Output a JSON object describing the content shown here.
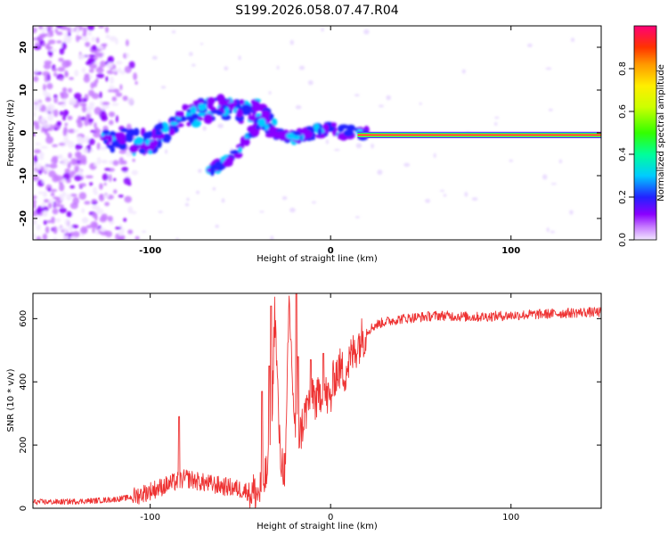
{
  "title": "S199.2026.058.07.47.R04",
  "chart_data": [
    {
      "type": "heatmap",
      "name": "spectrogram",
      "xlabel": "Height of straight line (km)",
      "ylabel": "Frequency (Hz)",
      "xlim": [
        -165,
        150
      ],
      "ylim": [
        -25,
        25
      ],
      "xticks": [
        -100,
        0,
        100
      ],
      "xtick_labels": [
        "-100",
        "0",
        "100"
      ],
      "yticks": [
        -20,
        -10,
        0,
        10,
        20
      ],
      "ytick_labels": [
        "-20",
        "-10",
        "0",
        "10",
        "20"
      ],
      "colorbar": {
        "label": "Normalized spectral amplitude",
        "range": [
          0,
          1
        ],
        "ticks": [
          0.0,
          0.2,
          0.4,
          0.6,
          0.8
        ],
        "tick_labels": [
          "0.0",
          "0.2",
          "0.4",
          "0.6",
          "0.8"
        ]
      },
      "ridge": [
        {
          "x": -120,
          "y": -1.5
        },
        {
          "x": -110,
          "y": -2
        },
        {
          "x": -100,
          "y": -2
        },
        {
          "x": -90,
          "y": 1
        },
        {
          "x": -80,
          "y": 4
        },
        {
          "x": -70,
          "y": 5
        },
        {
          "x": -60,
          "y": 6
        },
        {
          "x": -50,
          "y": 5
        },
        {
          "x": -40,
          "y": 5
        },
        {
          "x": -30,
          "y": 0
        },
        {
          "x": -20,
          "y": -1
        },
        {
          "x": -10,
          "y": 0
        },
        {
          "x": 0,
          "y": 1
        },
        {
          "x": 10,
          "y": 0
        },
        {
          "x": 20,
          "y": -0.5
        },
        {
          "x": 150,
          "y": -0.5
        }
      ],
      "branch": [
        {
          "x": -67,
          "y": -9
        },
        {
          "x": -60,
          "y": -7
        },
        {
          "x": -52,
          "y": -5
        },
        {
          "x": -47,
          "y": -2
        },
        {
          "x": -42,
          "y": 1
        },
        {
          "x": -36,
          "y": 4
        }
      ]
    },
    {
      "type": "line",
      "name": "snr",
      "xlabel": "Height of straight line (km)",
      "ylabel": "SNR (10 * v/v)",
      "xlim": [
        -165,
        150
      ],
      "ylim": [
        0,
        680
      ],
      "xticks": [
        -100,
        0,
        100
      ],
      "xtick_labels": [
        "-100",
        "0",
        "100"
      ],
      "yticks": [
        0,
        200,
        400,
        600
      ],
      "ytick_labels": [
        "0",
        "200",
        "400",
        "600"
      ],
      "series": [
        {
          "name": "SNR",
          "color": "#ee3333",
          "x": [
            -165,
            -150,
            -140,
            -130,
            -120,
            -110,
            -100,
            -90,
            -80,
            -70,
            -60,
            -50,
            -40,
            -36,
            -33,
            -31,
            -28,
            -25,
            -23,
            -20,
            -17,
            -15,
            -12,
            -10,
            -8,
            -5,
            -3,
            0,
            2,
            5,
            8,
            10,
            15,
            20,
            25,
            30,
            40,
            60,
            80,
            100,
            120,
            140,
            150
          ],
          "y": [
            20,
            20,
            22,
            24,
            28,
            35,
            55,
            75,
            95,
            80,
            70,
            60,
            45,
            100,
            150,
            640,
            160,
            120,
            660,
            260,
            230,
            280,
            340,
            380,
            330,
            380,
            360,
            340,
            420,
            440,
            430,
            460,
            520,
            560,
            580,
            590,
            600,
            610,
            605,
            610,
            615,
            620,
            620
          ],
          "spikes": [
            {
              "x": -84,
              "y": 290
            },
            {
              "x": -38,
              "y": 370
            },
            {
              "x": -34,
              "y": 450
            },
            {
              "x": -33,
              "y": 640
            },
            {
              "x": -19,
              "y": 680
            },
            {
              "x": -18,
              "y": 480
            },
            {
              "x": -11,
              "y": 470
            },
            {
              "x": -4,
              "y": 490
            }
          ]
        }
      ]
    }
  ]
}
